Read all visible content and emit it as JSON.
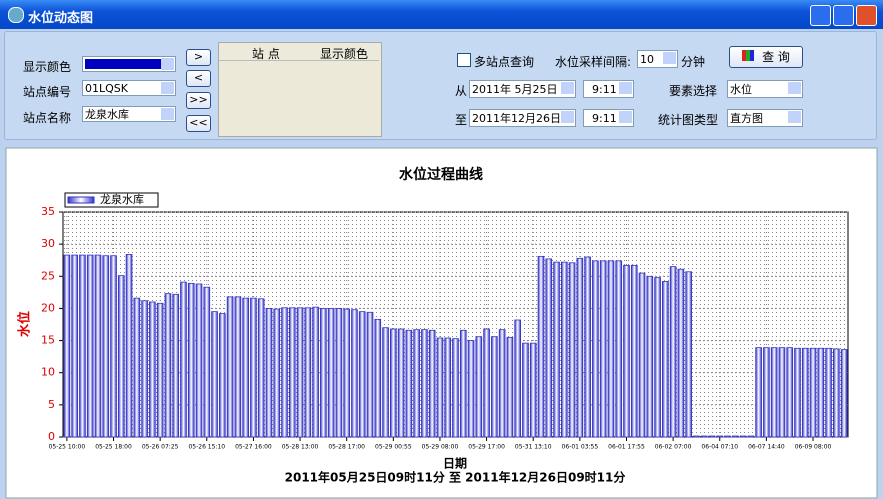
{
  "window": {
    "title": "水位动态图"
  },
  "controls": {
    "color_label": "显示颜色",
    "station_code_label": "站点编号",
    "station_code": "01LQSK",
    "station_name_label": "站点名称",
    "station_name": "龙泉水库",
    "buttons": [
      ">",
      "<",
      ">>",
      "<<"
    ],
    "list_headers": [
      "站 点",
      "显示颜色"
    ],
    "multi_station": "多站点查询",
    "interval_label": "水位采样间隔:",
    "interval": "10",
    "interval_unit": "分钟",
    "query": "查 询",
    "from_label": "从",
    "from_date": "2011年 5月25日",
    "from_time": "9:11",
    "to_label": "至",
    "to_date": "2011年12月26日",
    "to_time": "9:11",
    "element_label": "要素选择",
    "element": "水位",
    "chart_type_label": "统计图类型",
    "chart_type": "直方图"
  },
  "chart_data": {
    "type": "bar",
    "title": "水位过程曲线",
    "y_label": "水位",
    "x_label": "日期",
    "subtitle": "2011年05月25日09时11分 至 2011年12月26日09时11分",
    "series": [
      {
        "name": "龙泉水库",
        "color": "#3232c8",
        "values": [
          28.3,
          28.3,
          28.3,
          28.3,
          28.3,
          28.2,
          28.2,
          25.1,
          28.4,
          21.6,
          21.2,
          21,
          20.8,
          22.3,
          22.2,
          24.1,
          23.9,
          23.8,
          23.3,
          19.5,
          19.2,
          21.8,
          21.8,
          21.6,
          21.6,
          21.5,
          20,
          19.9,
          20.1,
          20.1,
          20.1,
          20.1,
          20.2,
          20,
          20,
          20,
          19.9,
          19.8,
          19.5,
          19.4,
          18.3,
          17,
          16.8,
          16.8,
          16.6,
          16.7,
          16.7,
          16.6,
          15.4,
          15.4,
          15.3,
          16.6,
          15,
          15.6,
          16.8,
          15.6,
          16.7,
          15.5,
          18.2,
          14.6,
          14.6,
          28.1,
          27.7,
          27.2,
          27.2,
          27.1,
          27.8,
          28,
          27.4,
          27.4,
          27.4,
          27.4,
          26.7,
          26.7,
          25.5,
          25,
          24.8,
          24.2,
          26.5,
          26.1,
          25.7,
          0,
          0,
          0,
          0,
          0,
          0,
          0,
          0,
          13.9,
          13.9,
          13.9,
          13.9,
          13.9,
          13.8,
          13.8,
          13.8,
          13.8,
          13.8,
          13.7,
          13.6
        ]
      }
    ],
    "ylim": [
      0,
      35
    ],
    "yticks": [
      0,
      5,
      10,
      15,
      20,
      25,
      30,
      35
    ],
    "xlim": [
      -0.5,
      100.5
    ],
    "xticks": [
      {
        "value": 0,
        "label": "05-25 10:00"
      },
      {
        "value": 6,
        "label": "05-25 18:00"
      },
      {
        "value": 12,
        "label": "05-26 07:25"
      },
      {
        "value": 18,
        "label": "05-26 15:10"
      },
      {
        "value": 24,
        "label": "05-27 16:00"
      },
      {
        "value": 30,
        "label": "05-28 13:00"
      },
      {
        "value": 36,
        "label": "05-28 17:00"
      },
      {
        "value": 42,
        "label": "05-29 00:55"
      },
      {
        "value": 48,
        "label": "05-29 08:00"
      },
      {
        "value": 54,
        "label": "05-29 17:00"
      },
      {
        "value": 60,
        "label": "05-31 13:10"
      },
      {
        "value": 66,
        "label": "06-01 03:55"
      },
      {
        "value": 72,
        "label": "06-01 17:55"
      },
      {
        "value": 78,
        "label": "06-02 07:00"
      },
      {
        "value": 84,
        "label": "06-04 07:10"
      },
      {
        "value": 90,
        "label": "06-07 14:40"
      },
      {
        "value": 96,
        "label": "06-09 08:00"
      }
    ],
    "grid": true,
    "legend": "top-left",
    "axis_color": "#e00000"
  }
}
